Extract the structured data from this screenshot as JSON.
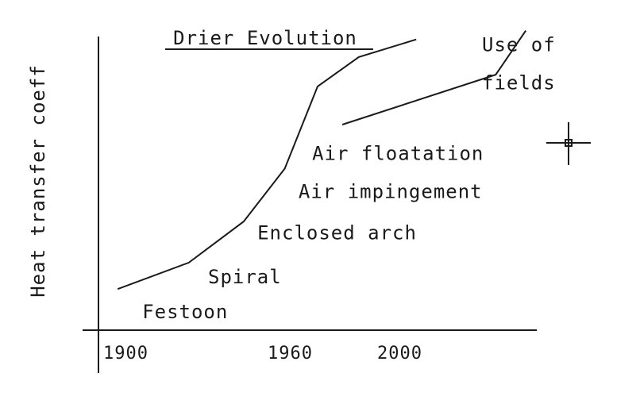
{
  "chart_data": {
    "type": "line",
    "title": "Drier Evolution",
    "ylabel": "Heat transfer coeff",
    "xlabel": "",
    "x_ticks": [
      1900,
      1960,
      2000
    ],
    "x_tick_labels": [
      "1900",
      "1960",
      "2000"
    ],
    "xlim": [
      1890,
      2050
    ],
    "ylim": [
      0,
      100
    ],
    "grid": false,
    "series": [
      {
        "x": [
          1897,
          1923,
          1943,
          1958,
          1970,
          1985,
          2006
        ],
        "y": [
          14,
          23,
          37,
          55,
          83,
          93,
          99
        ]
      },
      {
        "x": [
          1979,
          2035,
          2046
        ],
        "y": [
          70,
          87,
          102
        ]
      }
    ],
    "annotations": [
      {
        "text": "Festoon",
        "x": 1906,
        "y": 4
      },
      {
        "text": "Spiral",
        "x": 1930,
        "y": 16
      },
      {
        "text": "Enclosed arch",
        "x": 1948,
        "y": 31
      },
      {
        "text": "Air impingement",
        "x": 1963,
        "y": 45
      },
      {
        "text": "Air floatation",
        "x": 1968,
        "y": 58
      },
      {
        "text": "Use of",
        "x": 2030,
        "y": 95
      },
      {
        "text": "fields",
        "x": 2030,
        "y": 82
      }
    ]
  }
}
